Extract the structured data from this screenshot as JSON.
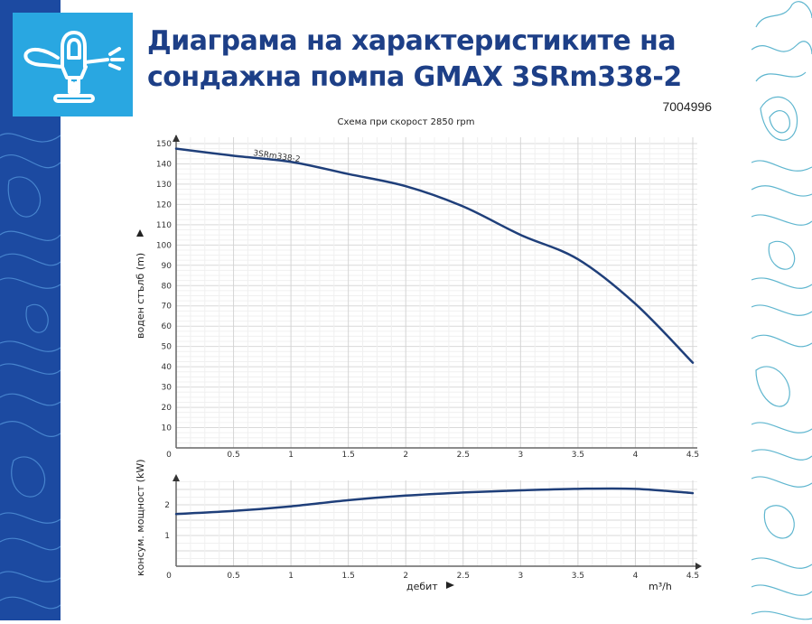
{
  "header": {
    "title_line1": "Диаграма на характеристиките на",
    "title_line2": "сондажна помпа GMAX 3SRm338-2",
    "product_code": "7004996",
    "icon": "sprinkler-icon"
  },
  "colors": {
    "brand_dark_blue": "#1c4aa1",
    "brand_light_blue": "#29a7e1",
    "title_color": "#1d3f87",
    "curve_color": "#1f3f7a",
    "grid_major": "#d9d9d9",
    "grid_minor": "#eeeeee"
  },
  "chart_data": [
    {
      "type": "line",
      "title": "Схема при скорост 2850 rpm",
      "xlabel": "дебит",
      "xunit": "m³/h",
      "ylabel": "воден стълб (m)",
      "xlim": [
        0,
        4.5
      ],
      "ylim": [
        0,
        150
      ],
      "x_ticks": [
        "0",
        "0.5",
        "1",
        "1.5",
        "2",
        "2.5",
        "3",
        "3.5",
        "4",
        "4.5"
      ],
      "y_ticks": [
        "10",
        "20",
        "30",
        "40",
        "50",
        "60",
        "70",
        "80",
        "90",
        "100",
        "110",
        "120",
        "130",
        "140",
        "150"
      ],
      "grid": true,
      "series": [
        {
          "name": "3SRm338-2",
          "x": [
            0,
            0.5,
            1,
            1.5,
            2,
            2.5,
            3,
            3.5,
            4,
            4.5
          ],
          "values": [
            147.5,
            144,
            141,
            135,
            129,
            119,
            105,
            93,
            71,
            42
          ]
        }
      ]
    },
    {
      "type": "line",
      "title": "",
      "xlabel": "дебит",
      "xunit": "m³/h",
      "ylabel": "консум. мощност (kW)",
      "xlim": [
        0,
        4.5
      ],
      "ylim": [
        0,
        2.8
      ],
      "x_ticks": [
        "0",
        "0.5",
        "1",
        "1.5",
        "2",
        "2.5",
        "3",
        "3.5",
        "4",
        "4.5"
      ],
      "y_ticks": [
        "1",
        "2"
      ],
      "grid": true,
      "series": [
        {
          "name": "3SRm338-2 power",
          "x": [
            0,
            0.5,
            1,
            1.5,
            2,
            2.5,
            3,
            3.5,
            4,
            4.5
          ],
          "values": [
            1.7,
            1.8,
            1.95,
            2.15,
            2.3,
            2.4,
            2.47,
            2.52,
            2.52,
            2.38
          ]
        }
      ]
    }
  ],
  "labels": {
    "subtitle": "Схема при скорост 2850 rpm",
    "head_axis": "воден стълб (m)",
    "power_axis": "консум. мощност (kW)",
    "flow_axis": "дебит",
    "flow_unit": "m³/h",
    "series_label": "3SRm338-2",
    "origin_top": "0",
    "origin_bottom": "0"
  }
}
